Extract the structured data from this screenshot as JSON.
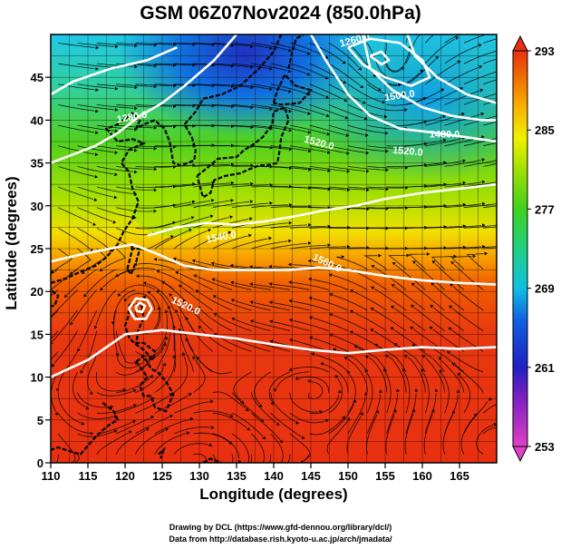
{
  "title": "GSM 06Z07Nov2024 (850.0hPa)",
  "xlabel": "Longitude (degrees)",
  "ylabel": "Latitude  (degrees)",
  "credit_line1": "Drawing by DCL (https://www.gfd-dennou.org/library/dcl/)",
  "credit_line2": "Data from http://database.rish.kyoto-u.ac.jp/arch/jmadata/",
  "chart_data": {
    "type": "heatmap",
    "xlim": [
      110,
      170
    ],
    "ylim": [
      0,
      50
    ],
    "x_ticks": [
      110,
      115,
      120,
      125,
      130,
      135,
      140,
      145,
      150,
      155,
      160,
      165
    ],
    "y_ticks": [
      0,
      5,
      10,
      15,
      20,
      25,
      30,
      35,
      40,
      45
    ],
    "colorbar": {
      "min": 253,
      "max": 293,
      "ticks": [
        253,
        261,
        269,
        277,
        285,
        293
      ],
      "colors": [
        "#e040c8",
        "#8020c0",
        "#2020c0",
        "#1060e0",
        "#10c0e0",
        "#20d080",
        "#40d020",
        "#a0e000",
        "#f0f000",
        "#f8b000",
        "#f07000",
        "#e83010"
      ]
    },
    "contour_labels": [
      {
        "text": "1260.0",
        "lon": 151,
        "lat": 49,
        "angle": -15
      },
      {
        "text": "1280.0",
        "lon": 121,
        "lat": 40,
        "angle": -10
      },
      {
        "text": "1500.0",
        "lon": 157,
        "lat": 42.5,
        "angle": -8
      },
      {
        "text": "1520.0",
        "lon": 146,
        "lat": 37,
        "angle": 15
      },
      {
        "text": "1520.0",
        "lon": 158,
        "lat": 36,
        "angle": 5
      },
      {
        "text": "1540.0",
        "lon": 133,
        "lat": 26,
        "angle": -10
      },
      {
        "text": "1560.0",
        "lon": 147,
        "lat": 23,
        "angle": 25
      },
      {
        "text": "1520.0",
        "lon": 128,
        "lat": 18,
        "angle": 25
      },
      {
        "text": "1480.0",
        "lon": 163,
        "lat": 38,
        "angle": 0
      }
    ]
  }
}
